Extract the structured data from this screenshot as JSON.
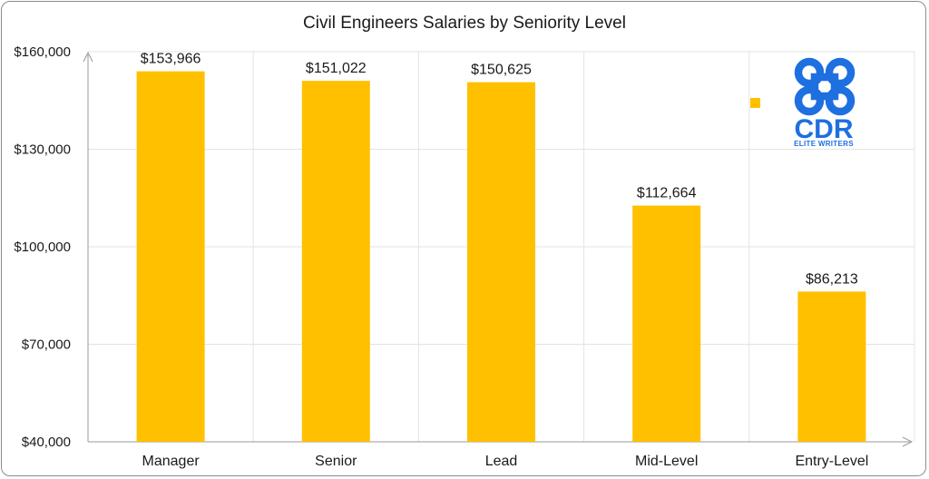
{
  "chart_data": {
    "type": "bar",
    "title": "Civil Engineers Salaries by Seniority Level",
    "xlabel": "",
    "ylabel": "",
    "categories": [
      "Manager",
      "Senior",
      "Lead",
      "Mid-Level",
      "Entry-Level"
    ],
    "values": [
      153966,
      151022,
      150625,
      112664,
      86213
    ],
    "data_labels": [
      "$153,966",
      "$151,022",
      "$150,625",
      "$112,664",
      "$86,213"
    ],
    "ylim": [
      40000,
      160000
    ],
    "yticks": [
      40000,
      70000,
      100000,
      130000,
      160000
    ],
    "ytick_labels": [
      "$40,000",
      "$70,000",
      "$100,000",
      "$130,000",
      "$160,000"
    ],
    "grid": true,
    "legend": "top-right",
    "bar_color": "#ffc000"
  },
  "logo": {
    "text": "CDR",
    "subtext": "ELITE WRITERS",
    "color": "#1e6fe0",
    "icon": "command-key-icon"
  }
}
